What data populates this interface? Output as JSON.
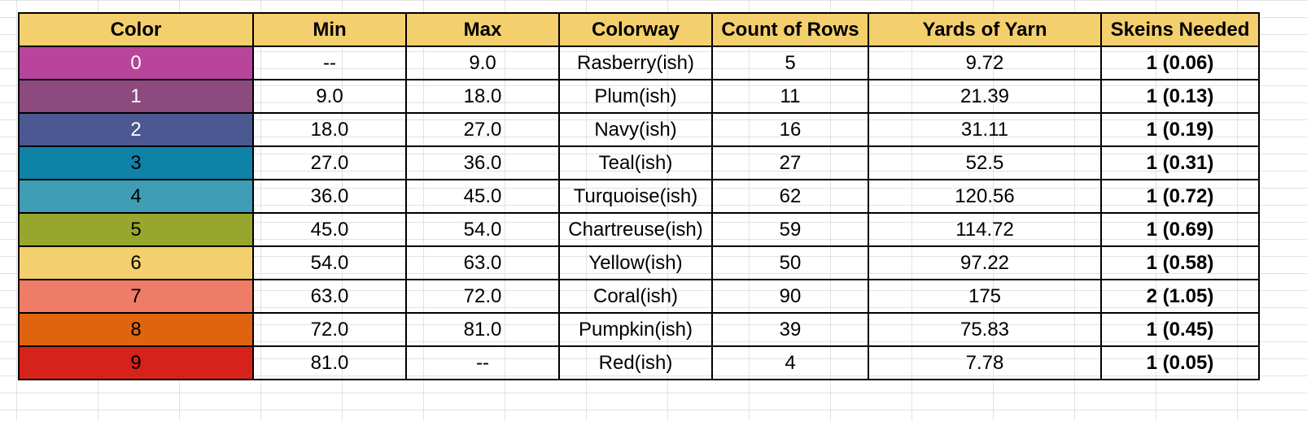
{
  "headers": [
    "Color",
    "Min",
    "Max",
    "Colorway",
    "Count of Rows",
    "Yards of Yarn",
    "Skeins Needed"
  ],
  "rows": [
    {
      "color": "0",
      "swatch": "#b8449c",
      "text_color": "#ffffff",
      "min": "--",
      "max": "9.0",
      "colorway": "Rasberry(ish)",
      "count": "5",
      "yards": "9.72",
      "skeins": "1 (0.06)"
    },
    {
      "color": "1",
      "swatch": "#8c4a7e",
      "text_color": "#ffffff",
      "min": "9.0",
      "max": "18.0",
      "colorway": "Plum(ish)",
      "count": "11",
      "yards": "21.39",
      "skeins": "1 (0.13)"
    },
    {
      "color": "2",
      "swatch": "#4b5892",
      "text_color": "#ffffff",
      "min": "18.0",
      "max": "27.0",
      "colorway": "Navy(ish)",
      "count": "16",
      "yards": "31.11",
      "skeins": "1 (0.19)"
    },
    {
      "color": "3",
      "swatch": "#0f82a8",
      "text_color": "#000000",
      "min": "27.0",
      "max": "36.0",
      "colorway": "Teal(ish)",
      "count": "27",
      "yards": "52.5",
      "skeins": "1 (0.31)"
    },
    {
      "color": "4",
      "swatch": "#3f9db5",
      "text_color": "#000000",
      "min": "36.0",
      "max": "45.0",
      "colorway": "Turquoise(ish)",
      "count": "62",
      "yards": "120.56",
      "skeins": "1 (0.72)"
    },
    {
      "color": "5",
      "swatch": "#97a72e",
      "text_color": "#000000",
      "min": "45.0",
      "max": "54.0",
      "colorway": "Chartreuse(ish)",
      "count": "59",
      "yards": "114.72",
      "skeins": "1 (0.69)"
    },
    {
      "color": "6",
      "swatch": "#f4cf6d",
      "text_color": "#000000",
      "min": "54.0",
      "max": "63.0",
      "colorway": "Yellow(ish)",
      "count": "50",
      "yards": "97.22",
      "skeins": "1 (0.58)"
    },
    {
      "color": "7",
      "swatch": "#ee7c66",
      "text_color": "#000000",
      "min": "63.0",
      "max": "72.0",
      "colorway": "Coral(ish)",
      "count": "90",
      "yards": "175",
      "skeins": "2 (1.05)"
    },
    {
      "color": "8",
      "swatch": "#e0640f",
      "text_color": "#000000",
      "min": "72.0",
      "max": "81.0",
      "colorway": "Pumpkin(ish)",
      "count": "39",
      "yards": "75.83",
      "skeins": "1 (0.45)"
    },
    {
      "color": "9",
      "swatch": "#d5221b",
      "text_color": "#000000",
      "min": "81.0",
      "max": "--",
      "colorway": "Red(ish)",
      "count": "4",
      "yards": "7.78",
      "skeins": "1 (0.05)"
    }
  ]
}
